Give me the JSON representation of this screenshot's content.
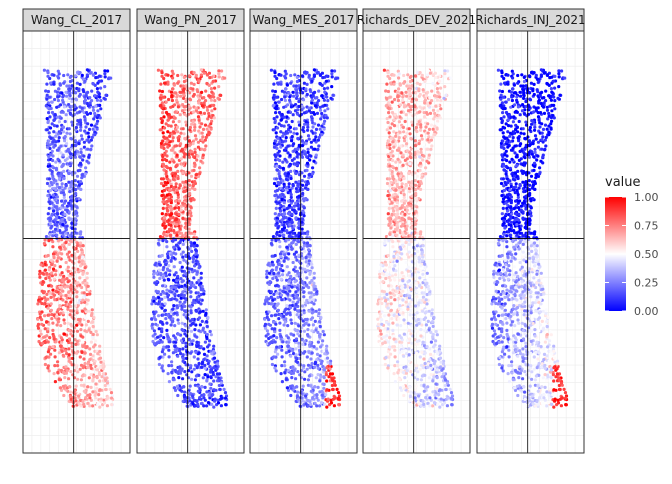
{
  "chart_data": {
    "type": "scatter",
    "facet_labels": [
      "Wang_CL_2017",
      "Wang_PN_2017",
      "Wang_MES_2017",
      "Richards_DEV_2021",
      "Richards_INJ_2021"
    ],
    "color_scale": {
      "title": "value",
      "limits": [
        0,
        1
      ],
      "breaks": [
        "1.00",
        "0.75",
        "0.50",
        "0.25",
        "0.00"
      ],
      "colors": {
        "low": "#0000ff",
        "mid": "#ffffff",
        "high": "#ff0000"
      }
    },
    "x_axis_text": "",
    "y_axis_text": "",
    "reference_lines": {
      "x": 0,
      "y": 0
    },
    "grid": true,
    "panel_background": "#ffffff",
    "strip_background": "#d9d9d9",
    "facet_patterns": [
      {
        "top_left": 0.18,
        "top_right": 0.1,
        "bottom_left": 0.85,
        "bottom_right": 0.55,
        "upper_center": 0.25,
        "hotspot": null
      },
      {
        "top_left": 0.95,
        "top_right": 0.75,
        "bottom_left": 0.18,
        "bottom_right": 0.12,
        "upper_center": 0.7,
        "hotspot": null
      },
      {
        "top_left": 0.12,
        "top_right": 0.12,
        "bottom_left": 0.15,
        "bottom_right": 0.35,
        "upper_center": 0.12,
        "hotspot": "bottom_right_high"
      },
      {
        "top_left": 0.7,
        "top_right": 0.55,
        "bottom_left": 0.6,
        "bottom_right": 0.3,
        "upper_center": 0.65,
        "hotspot": null
      },
      {
        "top_left": 0.03,
        "top_right": 0.02,
        "bottom_left": 0.18,
        "bottom_right": 0.6,
        "upper_center": 0.02,
        "hotspot": "bottom_right_high"
      }
    ]
  }
}
